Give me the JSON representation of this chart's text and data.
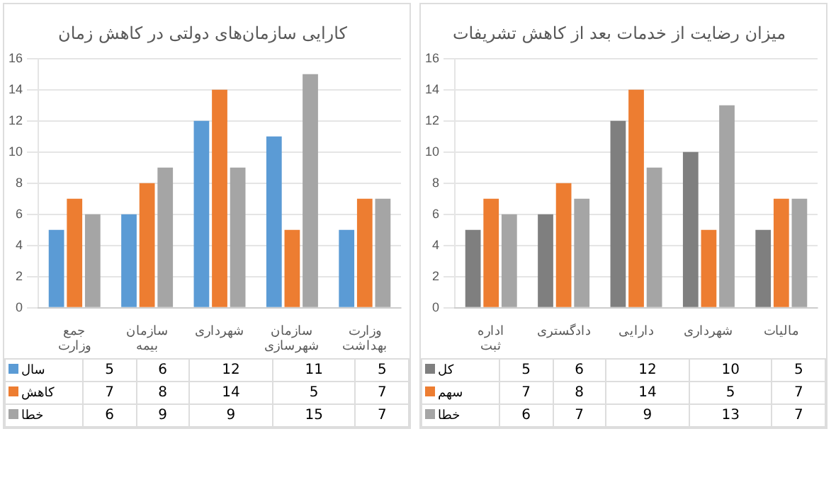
{
  "chart_data": [
    {
      "type": "bar",
      "title": "کارایی سازمان‌های دولتی در کاهش زمان",
      "categories": [
        "جمع وزارت",
        "سازمان بیمه",
        "شهرداری",
        "سازمان شهرسازی",
        "وزارت بهداشت"
      ],
      "series": [
        {
          "name": "سال",
          "color": "#5b9bd5",
          "values": [
            5,
            6,
            12,
            11,
            5
          ]
        },
        {
          "name": "کاهش",
          "color": "#ed7d31",
          "values": [
            7,
            8,
            14,
            5,
            7
          ]
        },
        {
          "name": "خطا",
          "color": "#a5a5a5",
          "values": [
            6,
            9,
            9,
            15,
            7
          ]
        }
      ],
      "ylim": [
        0,
        16
      ],
      "yticks": [
        0,
        2,
        4,
        6,
        8,
        10,
        12,
        14,
        16
      ],
      "grid": "y",
      "legend": "bottom",
      "data_labels": true
    },
    {
      "type": "bar",
      "title": "میزان رضایت از خدمات بعد از کاهش تشریفات",
      "categories": [
        "اداره ثبت",
        "دادگستری",
        "دارایی",
        "شهرداری",
        "مالیات"
      ],
      "series": [
        {
          "name": "کل",
          "color": "#7f7f7f",
          "values": [
            5,
            6,
            12,
            10,
            5
          ]
        },
        {
          "name": "سهم",
          "color": "#ed7d31",
          "values": [
            7,
            8,
            14,
            5,
            7
          ]
        },
        {
          "name": "خطا",
          "color": "#a5a5a5",
          "values": [
            6,
            7,
            9,
            13,
            7
          ]
        }
      ],
      "ylim": [
        0,
        16
      ],
      "yticks": [
        0,
        2,
        4,
        6,
        8,
        10,
        12,
        14,
        16
      ],
      "grid": "y",
      "legend": "bottom",
      "data_labels": true
    }
  ]
}
